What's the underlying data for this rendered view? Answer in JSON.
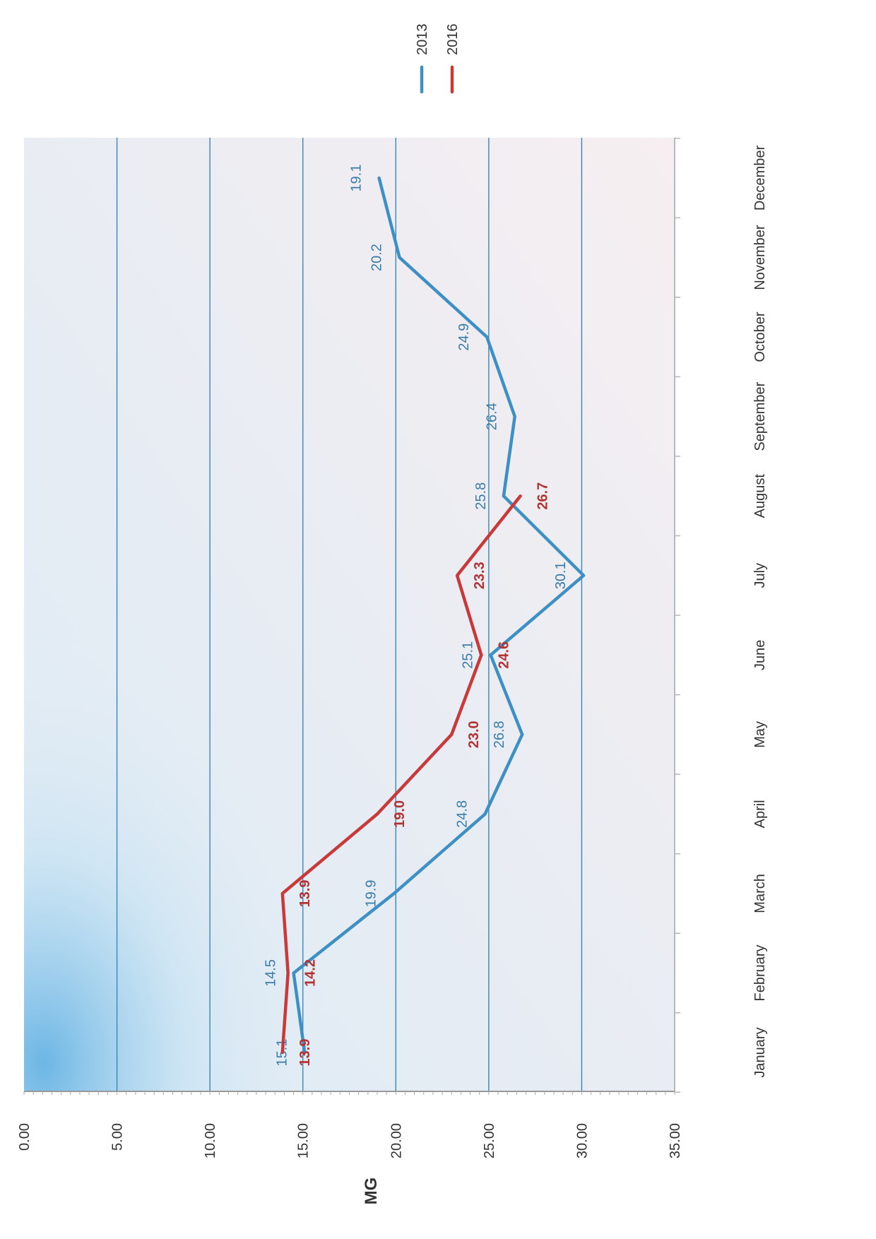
{
  "chart_data": {
    "type": "line",
    "categories": [
      "January",
      "February",
      "March",
      "April",
      "May",
      "June",
      "July",
      "August",
      "September",
      "October",
      "November",
      "December"
    ],
    "series": [
      {
        "name": "2013",
        "color": "#3d8fc4",
        "values": [
          15.1,
          14.5,
          19.9,
          24.8,
          26.8,
          25.1,
          30.1,
          25.8,
          26.4,
          24.9,
          20.2,
          19.1
        ],
        "labels": [
          "15.1",
          "14.5",
          "19.9",
          "24.8",
          "26.8",
          "25.1",
          "30.1",
          "25.8",
          "26.4",
          "24.9",
          "20.2",
          "19.1"
        ]
      },
      {
        "name": "2016",
        "color": "#c83a3a",
        "values": [
          13.9,
          14.2,
          13.9,
          19.0,
          23.0,
          24.6,
          23.3,
          26.7,
          null,
          null,
          null,
          null
        ],
        "labels": [
          "13.9",
          "14.2",
          "13.9",
          "19.0",
          "23.0",
          "24.6",
          "23.3",
          "26.7",
          "",
          "",
          "",
          ""
        ]
      }
    ],
    "ylabel": "MG",
    "xlabel": "",
    "title": "",
    "ylim": [
      0,
      35
    ],
    "yticks": [
      "0.00",
      "5.00",
      "10.00",
      "15.00",
      "20.00",
      "25.00",
      "30.00",
      "35.00"
    ],
    "grid": true,
    "legend": "top-right",
    "orientation": "rotated 90 degrees clockwise (page in landscape)"
  }
}
